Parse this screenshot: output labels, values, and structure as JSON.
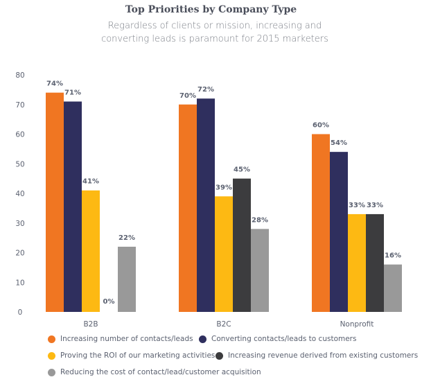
{
  "chart_data": {
    "type": "bar",
    "title": "Top Priorities by Company Type",
    "subtitle": "Regardless of clients or mission, increasing and converting leads is paramount for 2015 marketers",
    "xlabel": "",
    "ylabel": "",
    "ylim": [
      0,
      80
    ],
    "yticks": [
      0,
      10,
      20,
      30,
      40,
      50,
      60,
      70,
      80
    ],
    "grid": false,
    "legend_position": "bottom",
    "categories": [
      "B2B",
      "B2C",
      "Nonprofit"
    ],
    "series": [
      {
        "name": "Increasing number of contacts/leads",
        "color": "#F07622",
        "values": [
          74,
          70,
          60
        ],
        "labels": [
          "74%",
          "70%",
          "60%"
        ]
      },
      {
        "name": "Converting contacts/leads to customers",
        "color": "#2F2F5E",
        "values": [
          71,
          72,
          54
        ],
        "labels": [
          "71%",
          "72%",
          "54%"
        ]
      },
      {
        "name": "Proving the ROI of our marketing activities",
        "color": "#FDB913",
        "values": [
          41,
          39,
          33
        ],
        "labels": [
          "41%",
          "39%",
          "33%"
        ]
      },
      {
        "name": "Increasing revenue derived from existing customers",
        "color": "#3C3C3E",
        "values": [
          0,
          45,
          33
        ],
        "labels": [
          "0%",
          "45%",
          "33%"
        ]
      },
      {
        "name": "Reducing the cost of contact/lead/customer acquisition",
        "color": "#999999",
        "values": [
          22,
          28,
          16
        ],
        "labels": [
          "22%",
          "28%",
          "16%"
        ]
      }
    ]
  }
}
